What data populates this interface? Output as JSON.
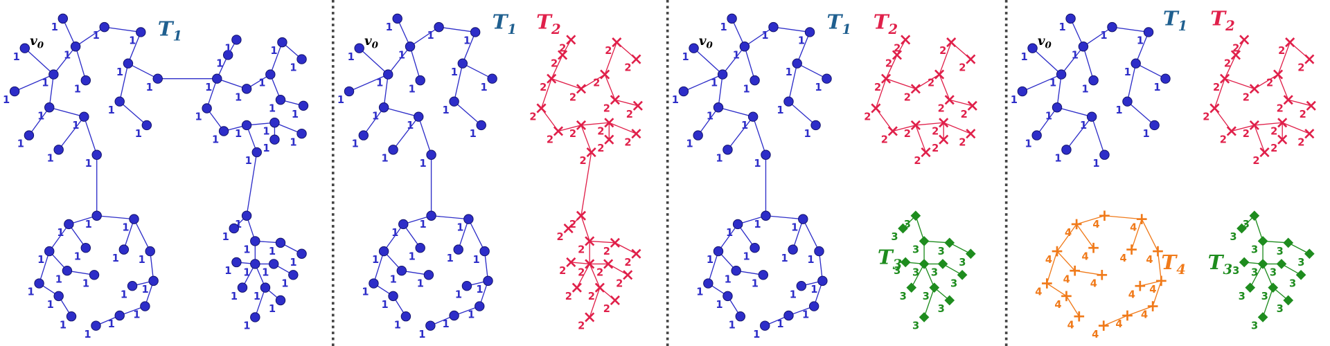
{
  "panels": [
    {
      "labels": [
        {
          "letter": "T",
          "subscript": "1",
          "color": "#1f5f8f"
        }
      ],
      "root_label": {
        "letter": "v",
        "subscript": "0"
      },
      "groups": [
        {
          "color": "#2d2dc8",
          "marker": "circle",
          "node_labels": [
            1,
            1,
            1,
            1,
            1,
            1,
            1,
            1,
            1,
            1,
            1,
            1,
            1,
            1,
            1,
            1,
            1
          ]
        },
        {
          "color": "#2d2dc8",
          "marker": "circle",
          "node_labels": [
            1,
            1,
            1,
            1,
            1,
            1,
            1,
            1,
            1,
            1,
            1,
            1,
            1,
            1,
            1,
            1,
            1
          ]
        },
        {
          "color": "#2d2dc8",
          "marker": "circle",
          "node_labels": [
            1,
            1,
            1,
            1,
            1,
            1,
            1,
            1,
            1,
            1,
            1,
            1,
            1,
            1,
            1,
            1
          ]
        },
        {
          "color": "#2d2dc8",
          "marker": "circle",
          "node_labels": [
            1,
            1,
            1,
            1,
            1,
            1,
            1,
            1,
            1,
            1,
            1,
            1,
            1
          ]
        }
      ]
    },
    {
      "labels": [
        {
          "letter": "T",
          "subscript": "1",
          "color": "#1f5f8f"
        },
        {
          "letter": "T",
          "subscript": "2",
          "color": "#e0204a"
        }
      ],
      "root_label": {
        "letter": "v",
        "subscript": "0"
      },
      "groups": [
        {
          "color": "#2d2dc8",
          "marker": "circle",
          "node_labels": [
            1,
            1,
            1,
            1,
            1,
            1,
            1,
            1,
            1,
            1,
            1,
            1,
            1,
            1,
            1,
            1,
            1
          ]
        },
        {
          "color": "#2d2dc8",
          "marker": "circle",
          "node_labels": [
            1,
            1,
            1,
            1,
            1,
            1,
            1,
            1,
            1,
            1,
            1,
            1,
            1,
            1,
            1,
            1,
            1
          ]
        },
        {
          "color": "#e0204a",
          "marker": "cross",
          "node_labels": [
            2,
            2,
            2,
            2,
            2,
            2,
            2,
            2,
            2,
            2,
            2,
            2,
            2,
            2,
            2,
            2
          ]
        },
        {
          "color": "#e0204a",
          "marker": "cross",
          "node_labels": [
            2,
            2,
            2,
            2,
            2,
            2,
            2,
            2,
            2,
            2,
            2,
            2,
            2
          ]
        }
      ]
    },
    {
      "labels": [
        {
          "letter": "T",
          "subscript": "1",
          "color": "#1f5f8f"
        },
        {
          "letter": "T",
          "subscript": "2",
          "color": "#e0204a"
        },
        {
          "letter": "T",
          "subscript": "3",
          "color": "#1e8c1e"
        }
      ],
      "root_label": {
        "letter": "v",
        "subscript": "0"
      },
      "groups": [
        {
          "color": "#2d2dc8",
          "marker": "circle",
          "node_labels": [
            1,
            1,
            1,
            1,
            1,
            1,
            1,
            1,
            1,
            1,
            1,
            1,
            1,
            1,
            1,
            1,
            1
          ]
        },
        {
          "color": "#2d2dc8",
          "marker": "circle",
          "node_labels": [
            1,
            1,
            1,
            1,
            1,
            1,
            1,
            1,
            1,
            1,
            1,
            1,
            1,
            1,
            1,
            1,
            1
          ]
        },
        {
          "color": "#e0204a",
          "marker": "cross",
          "node_labels": [
            2,
            2,
            2,
            2,
            2,
            2,
            2,
            2,
            2,
            2,
            2,
            2,
            2,
            2,
            2,
            2
          ]
        },
        {
          "color": "#1e8c1e",
          "marker": "diamond",
          "node_labels": [
            3,
            3,
            3,
            3,
            3,
            3,
            3,
            3,
            3,
            3,
            3,
            3,
            3
          ]
        }
      ]
    },
    {
      "labels": [
        {
          "letter": "T",
          "subscript": "1",
          "color": "#1f5f8f"
        },
        {
          "letter": "T",
          "subscript": "2",
          "color": "#e0204a"
        },
        {
          "letter": "T",
          "subscript": "4",
          "color": "#f07a1a"
        },
        {
          "letter": "T",
          "subscript": "3",
          "color": "#1e8c1e"
        }
      ],
      "root_label": {
        "letter": "v",
        "subscript": "0"
      },
      "groups": [
        {
          "color": "#2d2dc8",
          "marker": "circle",
          "node_labels": [
            1,
            1,
            1,
            1,
            1,
            1,
            1,
            1,
            1,
            1,
            1,
            1,
            1,
            1,
            1,
            1,
            1
          ]
        },
        {
          "color": "#f07a1a",
          "marker": "plus",
          "node_labels": [
            4,
            4,
            4,
            4,
            4,
            4,
            4,
            4,
            4,
            4,
            4,
            4,
            4,
            4,
            4,
            4,
            4
          ]
        },
        {
          "color": "#e0204a",
          "marker": "cross",
          "node_labels": [
            2,
            2,
            2,
            2,
            2,
            2,
            2,
            2,
            2,
            2,
            2,
            2,
            2,
            2,
            2,
            2
          ]
        },
        {
          "color": "#1e8c1e",
          "marker": "diamond",
          "node_labels": [
            3,
            3,
            3,
            3,
            3,
            3,
            3,
            3,
            3,
            3,
            3,
            3,
            3
          ]
        }
      ]
    }
  ]
}
